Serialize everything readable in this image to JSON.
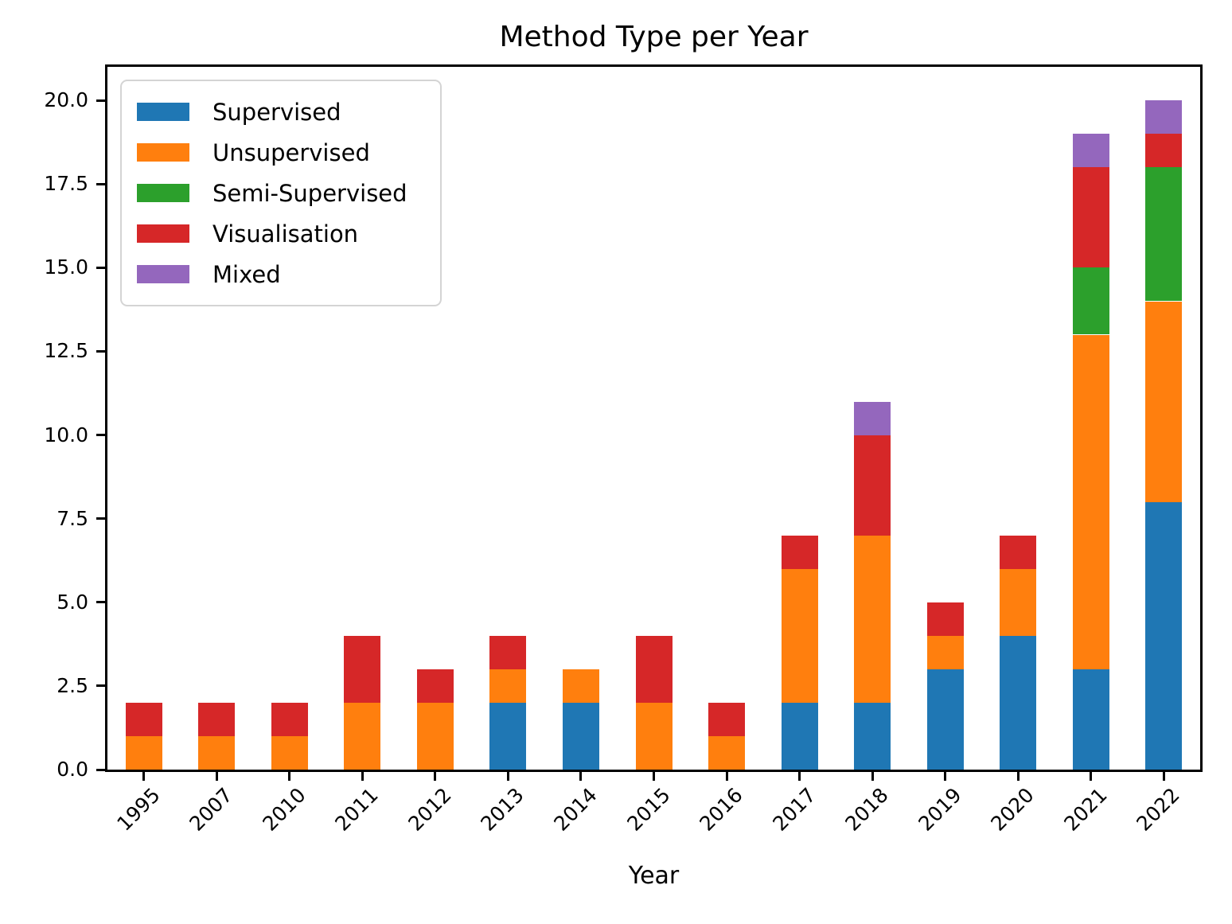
{
  "title": "Method Type per Year",
  "chart_data": {
    "type": "bar",
    "stacked": true,
    "title": "Method Type per Year",
    "xlabel": "Year",
    "ylabel": "",
    "categories": [
      "1995",
      "2007",
      "2010",
      "2011",
      "2012",
      "2013",
      "2014",
      "2015",
      "2016",
      "2017",
      "2018",
      "2019",
      "2020",
      "2021",
      "2022"
    ],
    "series": [
      {
        "name": "Supervised",
        "color": "#1f77b4",
        "values": [
          0,
          0,
          0,
          0,
          0,
          2,
          2,
          0,
          0,
          2,
          2,
          3,
          4,
          3,
          8
        ]
      },
      {
        "name": "Unsupervised",
        "color": "#ff7f0e",
        "values": [
          1,
          1,
          1,
          2,
          2,
          1,
          1,
          2,
          1,
          4,
          5,
          1,
          2,
          10,
          6
        ]
      },
      {
        "name": "Semi-Supervised",
        "color": "#2ca02c",
        "values": [
          0,
          0,
          0,
          0,
          0,
          0,
          0,
          0,
          0,
          0,
          0,
          0,
          0,
          2,
          4
        ]
      },
      {
        "name": "Visualisation",
        "color": "#d62728",
        "values": [
          1,
          1,
          1,
          2,
          1,
          1,
          0,
          2,
          1,
          1,
          3,
          1,
          1,
          3,
          1
        ]
      },
      {
        "name": "Mixed",
        "color": "#9467bd",
        "values": [
          0,
          0,
          0,
          0,
          0,
          0,
          0,
          0,
          0,
          0,
          1,
          0,
          0,
          1,
          1
        ]
      }
    ],
    "totals": [
      2,
      2,
      2,
      4,
      3,
      4,
      3,
      4,
      2,
      7,
      11,
      5,
      7,
      19,
      20
    ],
    "ylim": [
      0,
      21
    ],
    "ytick_labels": [
      "0.0",
      "2.5",
      "5.0",
      "7.5",
      "10.0",
      "12.5",
      "15.0",
      "17.5",
      "20.0"
    ],
    "ytick_values": [
      0,
      2.5,
      5,
      7.5,
      10,
      12.5,
      15,
      17.5,
      20
    ],
    "legend_position": "upper-left",
    "grid": false,
    "bar_width_fraction": 0.5
  }
}
